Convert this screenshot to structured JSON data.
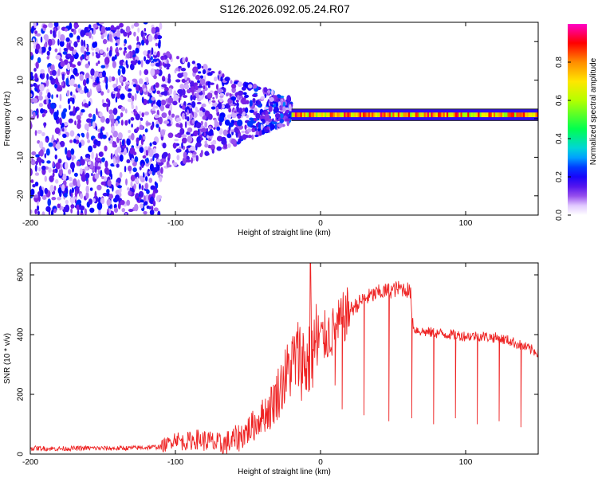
{
  "title": "S126.2026.092.05.24.R07",
  "chart_data": [
    {
      "type": "heatmap",
      "xlabel": "Height of straight line (km)",
      "ylabel": "Frequency (Hz)",
      "xlim": [
        -200,
        150
      ],
      "ylim": [
        -25,
        25
      ],
      "xticks": [
        -200,
        -100,
        0,
        100
      ],
      "yticks": [
        -20,
        -10,
        0,
        10,
        20
      ],
      "xtick_labels": [
        "-200",
        "-100",
        "0",
        "100"
      ],
      "ytick_labels": [
        "-20",
        "-10",
        "0",
        "10",
        "20"
      ],
      "colorbar": {
        "label": "Normalized spectral amplitude",
        "range": [
          0,
          1
        ],
        "ticks": [
          0.0,
          0.2,
          0.4,
          0.6,
          0.8
        ],
        "tick_labels": [
          "0.0",
          "0.2",
          "0.4",
          "0.6",
          "0.8"
        ]
      },
      "features": [
        {
          "description": "dense noise speckle",
          "x_range": [
            -200,
            -110
          ],
          "freq_range": [
            -25,
            25
          ],
          "amplitude_range": [
            0.05,
            0.25
          ]
        },
        {
          "description": "fading noise cluster",
          "x_range": [
            -110,
            -20
          ],
          "freq_range": [
            -10,
            15
          ],
          "amplitude_range": [
            0.05,
            0.3
          ]
        },
        {
          "description": "carrier line",
          "x_range": [
            -20,
            150
          ],
          "freq_center": 1,
          "freq_halfwidth": 1.5,
          "amplitude_range": [
            0.4,
            1.0
          ]
        }
      ]
    },
    {
      "type": "line",
      "xlabel": "Height of straight line (km)",
      "ylabel": "SNR (10 * v/v)",
      "xlim": [
        -200,
        150
      ],
      "ylim": [
        0,
        640
      ],
      "xticks": [
        -200,
        -100,
        0,
        100
      ],
      "yticks": [
        0,
        200,
        400,
        600
      ],
      "xtick_labels": [
        "-200",
        "-100",
        "0",
        "100"
      ],
      "ytick_labels": [
        "0",
        "200",
        "400",
        "600"
      ],
      "series": [
        {
          "name": "SNR",
          "color": "#ee2222",
          "x": [
            -200,
            -180,
            -160,
            -140,
            -120,
            -110,
            -105,
            -100,
            -95,
            -90,
            -85,
            -80,
            -75,
            -70,
            -65,
            -60,
            -55,
            -50,
            -45,
            -40,
            -35,
            -30,
            -25,
            -20,
            -15,
            -10,
            -5,
            0,
            5,
            10,
            15,
            20,
            25,
            30,
            35,
            40,
            45,
            50,
            55,
            60,
            62,
            64,
            70,
            80,
            90,
            100,
            110,
            120,
            130,
            140,
            150
          ],
          "values": [
            20,
            18,
            20,
            19,
            22,
            25,
            35,
            55,
            40,
            45,
            50,
            45,
            40,
            30,
            35,
            45,
            60,
            80,
            100,
            130,
            150,
            200,
            250,
            300,
            330,
            300,
            350,
            380,
            400,
            410,
            450,
            480,
            500,
            520,
            530,
            540,
            545,
            550,
            555,
            550,
            540,
            420,
            410,
            405,
            400,
            395,
            395,
            390,
            380,
            360,
            340
          ],
          "dips": [
            {
              "x": 10,
              "min": 230
            },
            {
              "x": 15,
              "min": 150
            },
            {
              "x": 30,
              "min": 130
            },
            {
              "x": 47,
              "min": 110
            },
            {
              "x": 63,
              "min": 120
            },
            {
              "x": 78,
              "min": 100
            },
            {
              "x": 93,
              "min": 120
            },
            {
              "x": 108,
              "min": 100
            },
            {
              "x": 123,
              "min": 110
            },
            {
              "x": 138,
              "min": 90
            }
          ],
          "peak": {
            "x": -7,
            "value": 640
          }
        }
      ]
    }
  ]
}
